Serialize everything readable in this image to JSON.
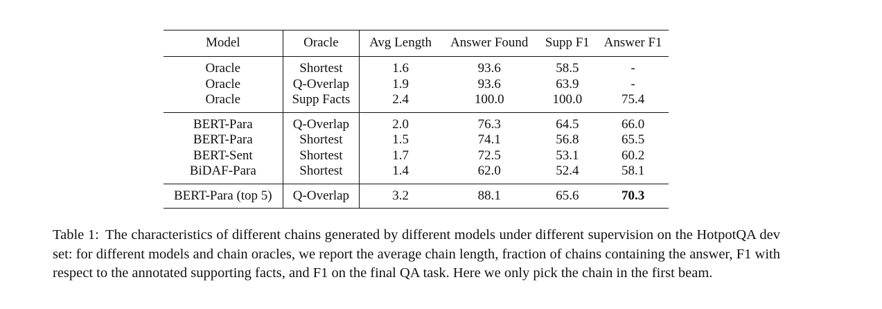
{
  "table": {
    "headers": [
      "Model",
      "Oracle",
      "Avg Length",
      "Answer Found",
      "Supp F1",
      "Answer F1"
    ],
    "groups": [
      [
        {
          "model": "Oracle",
          "oracle": "Shortest",
          "avg_length": "1.6",
          "answer_found": "93.6",
          "supp_f1": "58.5",
          "answer_f1": "-"
        },
        {
          "model": "Oracle",
          "oracle": "Q-Overlap",
          "avg_length": "1.9",
          "answer_found": "93.6",
          "supp_f1": "63.9",
          "answer_f1": "-"
        },
        {
          "model": "Oracle",
          "oracle": "Supp Facts",
          "avg_length": "2.4",
          "answer_found": "100.0",
          "supp_f1": "100.0",
          "answer_f1": "75.4"
        }
      ],
      [
        {
          "model": "BERT-Para",
          "oracle": "Q-Overlap",
          "avg_length": "2.0",
          "answer_found": "76.3",
          "supp_f1": "64.5",
          "answer_f1": "66.0"
        },
        {
          "model": "BERT-Para",
          "oracle": "Shortest",
          "avg_length": "1.5",
          "answer_found": "74.1",
          "supp_f1": "56.8",
          "answer_f1": "65.5"
        },
        {
          "model": "BERT-Sent",
          "oracle": "Shortest",
          "avg_length": "1.7",
          "answer_found": "72.5",
          "supp_f1": "53.1",
          "answer_f1": "60.2"
        },
        {
          "model": "BiDAF-Para",
          "oracle": "Shortest",
          "avg_length": "1.4",
          "answer_found": "62.0",
          "supp_f1": "52.4",
          "answer_f1": "58.1"
        }
      ],
      [
        {
          "model": "BERT-Para (top 5)",
          "oracle": "Q-Overlap",
          "avg_length": "3.2",
          "answer_found": "88.1",
          "supp_f1": "65.6",
          "answer_f1": "70.3"
        }
      ]
    ]
  },
  "caption": {
    "label": "Table 1:",
    "text": "The characteristics of different chains generated by different models under different supervision on the HotpotQA dev set: for different models and chain oracles, we report the average chain length, fraction of chains containing the answer, F1 with respect to the annotated supporting facts, and F1 on the final QA task. Here we only pick the chain in the first beam."
  }
}
